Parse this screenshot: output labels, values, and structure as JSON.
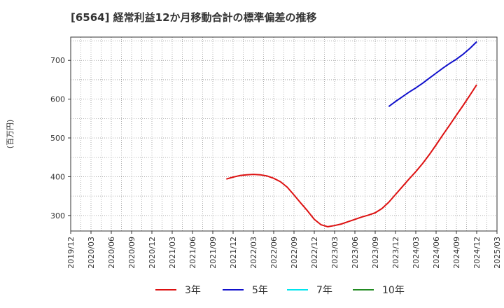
{
  "chart_data": {
    "type": "line",
    "title": "[6564]  経常利益12か月移動合計の標準偏差の推移",
    "ylabel": "(百万円)",
    "xlabel": "",
    "ylim": [
      260,
      760
    ],
    "y_ticks": [
      300,
      400,
      500,
      600,
      700
    ],
    "x_ticks": [
      "2019/12",
      "2020/03",
      "2020/06",
      "2020/09",
      "2020/12",
      "2021/03",
      "2021/06",
      "2021/09",
      "2021/12",
      "2022/03",
      "2022/06",
      "2022/09",
      "2022/12",
      "2023/03",
      "2023/06",
      "2023/09",
      "2023/12",
      "2024/03",
      "2024/06",
      "2024/09",
      "2024/12",
      "2025/03"
    ],
    "grid": true,
    "legend_position": "bottom",
    "series": [
      {
        "name": "3年",
        "color": "#dd1111",
        "points": [
          [
            "2021/11",
            394
          ],
          [
            "2021/12",
            399
          ],
          [
            "2022/01",
            403
          ],
          [
            "2022/02",
            405
          ],
          [
            "2022/03",
            406
          ],
          [
            "2022/04",
            405
          ],
          [
            "2022/05",
            402
          ],
          [
            "2022/06",
            396
          ],
          [
            "2022/07",
            387
          ],
          [
            "2022/08",
            373
          ],
          [
            "2022/09",
            353
          ],
          [
            "2022/10",
            332
          ],
          [
            "2022/11",
            312
          ],
          [
            "2022/12",
            290
          ],
          [
            "2023/01",
            276
          ],
          [
            "2023/02",
            271
          ],
          [
            "2023/03",
            274
          ],
          [
            "2023/04",
            278
          ],
          [
            "2023/05",
            284
          ],
          [
            "2023/06",
            290
          ],
          [
            "2023/07",
            296
          ],
          [
            "2023/08",
            301
          ],
          [
            "2023/09",
            307
          ],
          [
            "2023/10",
            318
          ],
          [
            "2023/11",
            334
          ],
          [
            "2023/12",
            354
          ],
          [
            "2024/01",
            374
          ],
          [
            "2024/02",
            394
          ],
          [
            "2024/03",
            413
          ],
          [
            "2024/04",
            434
          ],
          [
            "2024/05",
            457
          ],
          [
            "2024/06",
            482
          ],
          [
            "2024/07",
            508
          ],
          [
            "2024/08",
            533
          ],
          [
            "2024/09",
            559
          ],
          [
            "2024/10",
            584
          ],
          [
            "2024/11",
            610
          ],
          [
            "2024/12",
            637
          ]
        ]
      },
      {
        "name": "5年",
        "color": "#1111cc",
        "points": [
          [
            "2023/11",
            581
          ],
          [
            "2023/12",
            594
          ],
          [
            "2024/01",
            606
          ],
          [
            "2024/02",
            618
          ],
          [
            "2024/03",
            629
          ],
          [
            "2024/04",
            641
          ],
          [
            "2024/05",
            654
          ],
          [
            "2024/06",
            667
          ],
          [
            "2024/07",
            680
          ],
          [
            "2024/08",
            692
          ],
          [
            "2024/09",
            703
          ],
          [
            "2024/10",
            716
          ],
          [
            "2024/11",
            731
          ],
          [
            "2024/12",
            748
          ]
        ]
      },
      {
        "name": "7年",
        "color": "#00e5ee",
        "points": []
      },
      {
        "name": "10年",
        "color": "#228b22",
        "points": []
      }
    ]
  }
}
